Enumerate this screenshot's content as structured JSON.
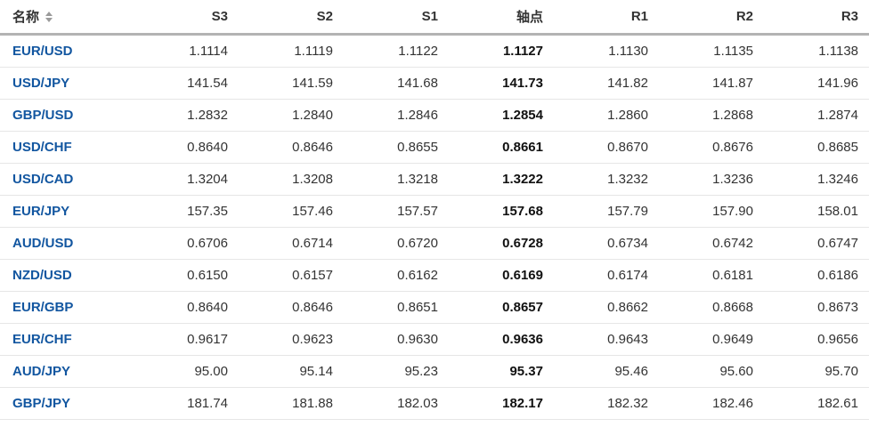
{
  "colors": {
    "link": "#1256a0",
    "header_text": "#333333",
    "cell_text": "#333333",
    "pivot_text": "#111111",
    "header_border": "#b3b3b3",
    "row_border": "#e6e6e6"
  },
  "icons": {
    "name_sort": "sort-updown-icon"
  },
  "table": {
    "columns": [
      {
        "key": "name",
        "label": "名称",
        "sortable": true
      },
      {
        "key": "s3",
        "label": "S3"
      },
      {
        "key": "s2",
        "label": "S2"
      },
      {
        "key": "s1",
        "label": "S1"
      },
      {
        "key": "pivot",
        "label": "轴点"
      },
      {
        "key": "r1",
        "label": "R1"
      },
      {
        "key": "r2",
        "label": "R2"
      },
      {
        "key": "r3",
        "label": "R3"
      }
    ],
    "rows": [
      {
        "name": "EUR/USD",
        "s3": "1.1114",
        "s2": "1.1119",
        "s1": "1.1122",
        "pivot": "1.1127",
        "r1": "1.1130",
        "r2": "1.1135",
        "r3": "1.1138"
      },
      {
        "name": "USD/JPY",
        "s3": "141.54",
        "s2": "141.59",
        "s1": "141.68",
        "pivot": "141.73",
        "r1": "141.82",
        "r2": "141.87",
        "r3": "141.96"
      },
      {
        "name": "GBP/USD",
        "s3": "1.2832",
        "s2": "1.2840",
        "s1": "1.2846",
        "pivot": "1.2854",
        "r1": "1.2860",
        "r2": "1.2868",
        "r3": "1.2874"
      },
      {
        "name": "USD/CHF",
        "s3": "0.8640",
        "s2": "0.8646",
        "s1": "0.8655",
        "pivot": "0.8661",
        "r1": "0.8670",
        "r2": "0.8676",
        "r3": "0.8685"
      },
      {
        "name": "USD/CAD",
        "s3": "1.3204",
        "s2": "1.3208",
        "s1": "1.3218",
        "pivot": "1.3222",
        "r1": "1.3232",
        "r2": "1.3236",
        "r3": "1.3246"
      },
      {
        "name": "EUR/JPY",
        "s3": "157.35",
        "s2": "157.46",
        "s1": "157.57",
        "pivot": "157.68",
        "r1": "157.79",
        "r2": "157.90",
        "r3": "158.01"
      },
      {
        "name": "AUD/USD",
        "s3": "0.6706",
        "s2": "0.6714",
        "s1": "0.6720",
        "pivot": "0.6728",
        "r1": "0.6734",
        "r2": "0.6742",
        "r3": "0.6747"
      },
      {
        "name": "NZD/USD",
        "s3": "0.6150",
        "s2": "0.6157",
        "s1": "0.6162",
        "pivot": "0.6169",
        "r1": "0.6174",
        "r2": "0.6181",
        "r3": "0.6186"
      },
      {
        "name": "EUR/GBP",
        "s3": "0.8640",
        "s2": "0.8646",
        "s1": "0.8651",
        "pivot": "0.8657",
        "r1": "0.8662",
        "r2": "0.8668",
        "r3": "0.8673"
      },
      {
        "name": "EUR/CHF",
        "s3": "0.9617",
        "s2": "0.9623",
        "s1": "0.9630",
        "pivot": "0.9636",
        "r1": "0.9643",
        "r2": "0.9649",
        "r3": "0.9656"
      },
      {
        "name": "AUD/JPY",
        "s3": "95.00",
        "s2": "95.14",
        "s1": "95.23",
        "pivot": "95.37",
        "r1": "95.46",
        "r2": "95.60",
        "r3": "95.70"
      },
      {
        "name": "GBP/JPY",
        "s3": "181.74",
        "s2": "181.88",
        "s1": "182.03",
        "pivot": "182.17",
        "r1": "182.32",
        "r2": "182.46",
        "r3": "182.61"
      }
    ]
  }
}
